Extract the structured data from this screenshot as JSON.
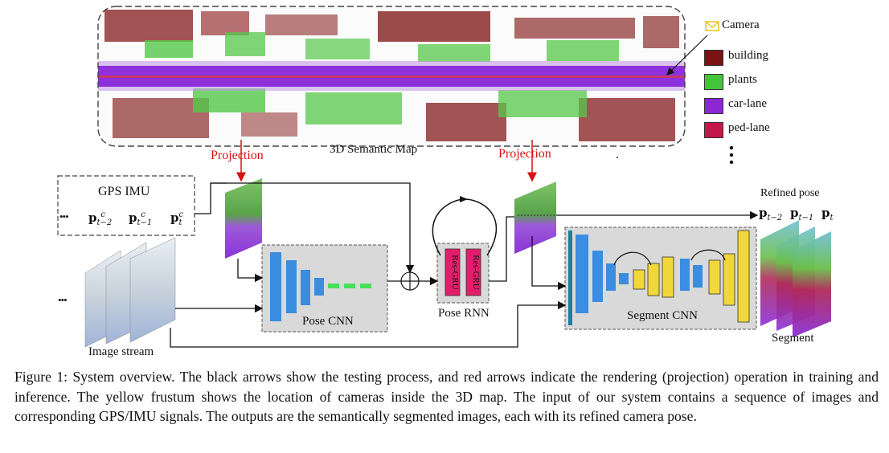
{
  "map": {
    "title": "3D Semantic Map"
  },
  "legend": {
    "camera_label": "Camera",
    "items": [
      {
        "label": "building",
        "color": "#7a1414"
      },
      {
        "label": "plants",
        "color": "#44c43a"
      },
      {
        "label": "car-lane",
        "color": "#8a28d4"
      },
      {
        "label": "ped-lane",
        "color": "#c4174a"
      }
    ],
    "more": "⋮"
  },
  "projection_left": "Projection",
  "projection_right": "Projection",
  "gps": {
    "title": "GPS IMU",
    "dots": "•••",
    "poses": [
      "p_{t−2}^c",
      "p_{t−1}^c",
      "p_t^c"
    ]
  },
  "image_stream": {
    "label": "Image stream",
    "dots": "•••"
  },
  "pose_cnn": {
    "label": "Pose CNN"
  },
  "pose_rnn": {
    "label": "Pose RNN",
    "cells": [
      "Res-GRU",
      "Res-GRU"
    ]
  },
  "segment_cnn": {
    "label": "Segment CNN"
  },
  "refined": {
    "title": "Refined pose",
    "poses": [
      "p_{t−2}",
      "p_{t−1}",
      "p_t"
    ]
  },
  "segment": {
    "label": "Segment"
  },
  "caption": "Figure 1: System overview. The black arrows show the testing process, and red arrows indicate the rendering (projection) operation in training and inference. The yellow frustum shows the location of cameras inside the 3D map. The input of our system contains a sequence of images and corresponding GPS/IMU signals. The outputs are the semantically segmented images, each with its refined camera pose.",
  "colors": {
    "arrow_red": "#dd1111",
    "cnn_blue": "#3a8de0",
    "cnn_yellow": "#f2d73a",
    "green_bar": "#44e05a",
    "gray_box": "#d8d8d8",
    "gru_pink": "#e21e6c"
  }
}
